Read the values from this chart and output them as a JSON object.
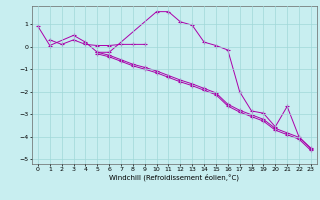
{
  "background_color": "#c8eef0",
  "grid_color": "#a0d8d8",
  "line_color": "#aa00aa",
  "xlim": [
    -0.5,
    23.5
  ],
  "ylim": [
    -5.2,
    1.8
  ],
  "yticks": [
    -5,
    -4,
    -3,
    -2,
    -1,
    0,
    1
  ],
  "xticks": [
    0,
    1,
    2,
    3,
    4,
    5,
    6,
    7,
    8,
    9,
    10,
    11,
    12,
    13,
    14,
    15,
    16,
    17,
    18,
    19,
    20,
    21,
    22,
    23
  ],
  "xlabel": "Windchill (Refroidissement éolien,°C)",
  "series": [
    {
      "x": [
        0,
        1,
        3,
        4,
        5,
        6,
        10,
        11,
        12,
        13,
        14,
        15,
        16,
        17,
        18,
        19,
        20,
        21,
        22,
        23
      ],
      "y": [
        0.9,
        0.05,
        0.5,
        0.2,
        -0.25,
        -0.25,
        1.55,
        1.55,
        1.1,
        0.95,
        0.2,
        0.05,
        -0.15,
        -2.0,
        -2.85,
        -2.95,
        -3.55,
        -2.65,
        -4.0,
        -4.5
      ]
    },
    {
      "x": [
        1,
        2,
        3,
        4,
        5,
        6,
        7,
        8,
        9
      ],
      "y": [
        0.3,
        0.1,
        0.3,
        0.1,
        0.05,
        0.05,
        0.1,
        0.1,
        0.1
      ]
    },
    {
      "x": [
        5,
        6,
        7,
        8,
        9,
        10,
        11,
        12,
        13,
        14,
        15,
        16,
        17,
        18,
        19,
        20,
        21,
        22,
        23
      ],
      "y": [
        -0.25,
        -0.38,
        -0.58,
        -0.78,
        -0.92,
        -1.08,
        -1.28,
        -1.48,
        -1.65,
        -1.85,
        -2.05,
        -2.55,
        -2.82,
        -3.02,
        -3.22,
        -3.62,
        -3.82,
        -4.02,
        -4.52
      ]
    },
    {
      "x": [
        5,
        6,
        7,
        8,
        9,
        10,
        11,
        12,
        13,
        14,
        15,
        16,
        17,
        18,
        19,
        20,
        21,
        22,
        23
      ],
      "y": [
        -0.32,
        -0.45,
        -0.65,
        -0.85,
        -1.0,
        -1.16,
        -1.36,
        -1.56,
        -1.73,
        -1.93,
        -2.13,
        -2.63,
        -2.9,
        -3.1,
        -3.3,
        -3.7,
        -3.9,
        -4.1,
        -4.6
      ]
    }
  ]
}
